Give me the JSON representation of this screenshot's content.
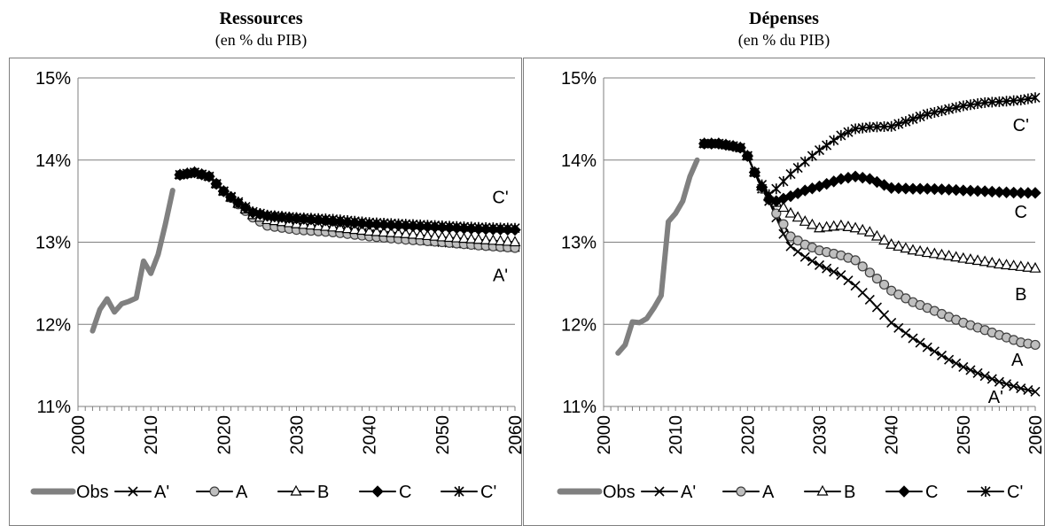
{
  "colors": {
    "obs": "#808080",
    "series": "#000000",
    "marker_fill_A": "#bfbfbf",
    "grid": "#7f7f7f",
    "axis": "#7f7f7f"
  },
  "legend": [
    "Obs",
    "A'",
    "A",
    "B",
    "C",
    "C'"
  ],
  "chart_data": [
    {
      "type": "line",
      "title": "Ressources",
      "subtitle": "(en % du PIB)",
      "xlim": [
        2000,
        2060
      ],
      "ylim": [
        11,
        15
      ],
      "x_ticks": [
        2000,
        2010,
        2020,
        2030,
        2040,
        2050,
        2060
      ],
      "x_tick_labels": [
        "2000",
        "2010",
        "2020",
        "2030",
        "2040",
        "2050",
        "2060"
      ],
      "y_ticks": [
        11,
        12,
        13,
        14,
        15
      ],
      "y_tick_labels": [
        "11%",
        "12%",
        "13%",
        "14%",
        "15%"
      ],
      "grid": "horizontal",
      "legend_position": "bottom",
      "annotations": [
        {
          "text": "C'",
          "x": 2058,
          "y": 13.55
        },
        {
          "text": "A'",
          "x": 2058,
          "y": 12.6
        }
      ],
      "series": [
        {
          "name": "Obs",
          "marker": "none",
          "points": [
            [
              2002,
              11.92
            ],
            [
              2003,
              12.18
            ],
            [
              2004,
              12.31
            ],
            [
              2005,
              12.15
            ],
            [
              2006,
              12.25
            ],
            [
              2007,
              12.28
            ],
            [
              2008,
              12.32
            ],
            [
              2009,
              12.77
            ],
            [
              2010,
              12.62
            ],
            [
              2011,
              12.85
            ],
            [
              2012,
              13.22
            ],
            [
              2013,
              13.63
            ]
          ]
        },
        {
          "name": "A'",
          "marker": "x",
          "points": [
            [
              2014,
              13.82
            ],
            [
              2016,
              13.85
            ],
            [
              2018,
              13.8
            ],
            [
              2020,
              13.62
            ],
            [
              2022,
              13.47
            ],
            [
              2024,
              13.33
            ],
            [
              2026,
              13.27
            ],
            [
              2030,
              13.23
            ],
            [
              2035,
              13.18
            ],
            [
              2040,
              13.1
            ],
            [
              2045,
              13.05
            ],
            [
              2050,
              13.0
            ],
            [
              2055,
              12.97
            ],
            [
              2060,
              12.94
            ]
          ]
        },
        {
          "name": "A",
          "marker": "circle",
          "points": [
            [
              2014,
              13.82
            ],
            [
              2016,
              13.85
            ],
            [
              2018,
              13.8
            ],
            [
              2020,
              13.62
            ],
            [
              2022,
              13.46
            ],
            [
              2024,
              13.3
            ],
            [
              2026,
              13.2
            ],
            [
              2030,
              13.15
            ],
            [
              2035,
              13.12
            ],
            [
              2040,
              13.07
            ],
            [
              2045,
              13.03
            ],
            [
              2050,
              13.0
            ],
            [
              2055,
              12.96
            ],
            [
              2060,
              12.93
            ]
          ]
        },
        {
          "name": "B",
          "marker": "triangle",
          "points": [
            [
              2014,
              13.82
            ],
            [
              2016,
              13.85
            ],
            [
              2018,
              13.8
            ],
            [
              2020,
              13.62
            ],
            [
              2022,
              13.47
            ],
            [
              2024,
              13.33
            ],
            [
              2026,
              13.27
            ],
            [
              2030,
              13.22
            ],
            [
              2035,
              13.18
            ],
            [
              2040,
              13.13
            ],
            [
              2045,
              13.1
            ],
            [
              2050,
              13.06
            ],
            [
              2055,
              13.03
            ],
            [
              2060,
              13.0
            ]
          ]
        },
        {
          "name": "C",
          "marker": "diamond",
          "points": [
            [
              2014,
              13.82
            ],
            [
              2016,
              13.85
            ],
            [
              2018,
              13.8
            ],
            [
              2020,
              13.62
            ],
            [
              2022,
              13.48
            ],
            [
              2024,
              13.36
            ],
            [
              2026,
              13.32
            ],
            [
              2030,
              13.29
            ],
            [
              2035,
              13.26
            ],
            [
              2040,
              13.22
            ],
            [
              2045,
              13.2
            ],
            [
              2050,
              13.18
            ],
            [
              2055,
              13.16
            ],
            [
              2060,
              13.15
            ]
          ]
        },
        {
          "name": "C'",
          "marker": "star",
          "points": [
            [
              2014,
              13.82
            ],
            [
              2016,
              13.85
            ],
            [
              2018,
              13.8
            ],
            [
              2020,
              13.62
            ],
            [
              2022,
              13.49
            ],
            [
              2024,
              13.37
            ],
            [
              2026,
              13.33
            ],
            [
              2030,
              13.3
            ],
            [
              2035,
              13.28
            ],
            [
              2040,
              13.24
            ],
            [
              2045,
              13.22
            ],
            [
              2050,
              13.2
            ],
            [
              2055,
              13.18
            ],
            [
              2060,
              13.17
            ]
          ]
        }
      ]
    },
    {
      "type": "line",
      "title": "Dépenses",
      "subtitle": "(en % du PIB)",
      "xlim": [
        2000,
        2060
      ],
      "ylim": [
        11,
        15
      ],
      "x_ticks": [
        2000,
        2010,
        2020,
        2030,
        2040,
        2050,
        2060
      ],
      "x_tick_labels": [
        "2000",
        "2010",
        "2020",
        "2030",
        "2040",
        "2050",
        "2060"
      ],
      "y_ticks": [
        11,
        12,
        13,
        14,
        15
      ],
      "y_tick_labels": [
        "11%",
        "12%",
        "13%",
        "14%",
        "15%"
      ],
      "grid": "horizontal",
      "legend_position": "bottom",
      "annotations": [
        {
          "text": "C'",
          "x": 2058,
          "y": 14.43
        },
        {
          "text": "C",
          "x": 2058,
          "y": 13.37
        },
        {
          "text": "B",
          "x": 2058,
          "y": 12.37
        },
        {
          "text": "A",
          "x": 2057.5,
          "y": 11.57
        },
        {
          "text": "A'",
          "x": 2054.5,
          "y": 11.12
        }
      ],
      "series": [
        {
          "name": "Obs",
          "marker": "none",
          "points": [
            [
              2002,
              11.65
            ],
            [
              2003,
              11.75
            ],
            [
              2004,
              12.03
            ],
            [
              2005,
              12.02
            ],
            [
              2006,
              12.07
            ],
            [
              2007,
              12.2
            ],
            [
              2008,
              12.35
            ],
            [
              2009,
              13.25
            ],
            [
              2010,
              13.35
            ],
            [
              2011,
              13.5
            ],
            [
              2012,
              13.8
            ],
            [
              2013,
              14.0
            ]
          ]
        },
        {
          "name": "A'",
          "marker": "x",
          "points": [
            [
              2014,
              14.2
            ],
            [
              2016,
              14.2
            ],
            [
              2018,
              14.17
            ],
            [
              2019,
              14.15
            ],
            [
              2020,
              14.05
            ],
            [
              2021,
              13.85
            ],
            [
              2022,
              13.65
            ],
            [
              2023,
              13.5
            ],
            [
              2024,
              13.3
            ],
            [
              2025,
              13.1
            ],
            [
              2026,
              12.95
            ],
            [
              2028,
              12.82
            ],
            [
              2030,
              12.72
            ],
            [
              2033,
              12.6
            ],
            [
              2035,
              12.47
            ],
            [
              2037,
              12.3
            ],
            [
              2040,
              12.02
            ],
            [
              2043,
              11.83
            ],
            [
              2045,
              11.72
            ],
            [
              2048,
              11.57
            ],
            [
              2050,
              11.48
            ],
            [
              2053,
              11.37
            ],
            [
              2055,
              11.3
            ],
            [
              2058,
              11.22
            ],
            [
              2060,
              11.18
            ]
          ]
        },
        {
          "name": "A",
          "marker": "circle",
          "points": [
            [
              2014,
              14.2
            ],
            [
              2016,
              14.2
            ],
            [
              2018,
              14.17
            ],
            [
              2019,
              14.15
            ],
            [
              2020,
              14.05
            ],
            [
              2021,
              13.85
            ],
            [
              2022,
              13.65
            ],
            [
              2023,
              13.52
            ],
            [
              2024,
              13.35
            ],
            [
              2025,
              13.22
            ],
            [
              2026,
              13.07
            ],
            [
              2028,
              12.97
            ],
            [
              2030,
              12.9
            ],
            [
              2033,
              12.84
            ],
            [
              2035,
              12.78
            ],
            [
              2037,
              12.63
            ],
            [
              2040,
              12.41
            ],
            [
              2043,
              12.27
            ],
            [
              2045,
              12.2
            ],
            [
              2048,
              12.09
            ],
            [
              2050,
              12.02
            ],
            [
              2053,
              11.93
            ],
            [
              2055,
              11.87
            ],
            [
              2058,
              11.78
            ],
            [
              2060,
              11.75
            ]
          ]
        },
        {
          "name": "B",
          "marker": "triangle",
          "points": [
            [
              2014,
              14.2
            ],
            [
              2016,
              14.2
            ],
            [
              2018,
              14.17
            ],
            [
              2019,
              14.15
            ],
            [
              2020,
              14.05
            ],
            [
              2021,
              13.85
            ],
            [
              2022,
              13.68
            ],
            [
              2023,
              13.55
            ],
            [
              2024,
              13.48
            ],
            [
              2025,
              13.42
            ],
            [
              2026,
              13.35
            ],
            [
              2028,
              13.25
            ],
            [
              2030,
              13.17
            ],
            [
              2033,
              13.2
            ],
            [
              2035,
              13.17
            ],
            [
              2037,
              13.12
            ],
            [
              2040,
              12.97
            ],
            [
              2043,
              12.9
            ],
            [
              2045,
              12.87
            ],
            [
              2048,
              12.83
            ],
            [
              2050,
              12.8
            ],
            [
              2053,
              12.76
            ],
            [
              2055,
              12.73
            ],
            [
              2058,
              12.7
            ],
            [
              2060,
              12.68
            ]
          ]
        },
        {
          "name": "C",
          "marker": "diamond",
          "points": [
            [
              2014,
              14.2
            ],
            [
              2016,
              14.2
            ],
            [
              2018,
              14.17
            ],
            [
              2019,
              14.15
            ],
            [
              2020,
              14.05
            ],
            [
              2021,
              13.85
            ],
            [
              2022,
              13.67
            ],
            [
              2023,
              13.52
            ],
            [
              2024,
              13.5
            ],
            [
              2026,
              13.56
            ],
            [
              2028,
              13.63
            ],
            [
              2030,
              13.68
            ],
            [
              2033,
              13.77
            ],
            [
              2035,
              13.8
            ],
            [
              2037,
              13.77
            ],
            [
              2040,
              13.66
            ],
            [
              2043,
              13.65
            ],
            [
              2045,
              13.65
            ],
            [
              2048,
              13.64
            ],
            [
              2050,
              13.63
            ],
            [
              2053,
              13.62
            ],
            [
              2055,
              13.61
            ],
            [
              2058,
              13.6
            ],
            [
              2060,
              13.6
            ]
          ]
        },
        {
          "name": "C'",
          "marker": "star",
          "points": [
            [
              2014,
              14.2
            ],
            [
              2016,
              14.2
            ],
            [
              2018,
              14.17
            ],
            [
              2019,
              14.15
            ],
            [
              2020,
              14.05
            ],
            [
              2021,
              13.85
            ],
            [
              2022,
              13.7
            ],
            [
              2023,
              13.58
            ],
            [
              2024,
              13.65
            ],
            [
              2026,
              13.83
            ],
            [
              2028,
              13.98
            ],
            [
              2030,
              14.12
            ],
            [
              2033,
              14.3
            ],
            [
              2035,
              14.38
            ],
            [
              2037,
              14.4
            ],
            [
              2040,
              14.41
            ],
            [
              2043,
              14.5
            ],
            [
              2045,
              14.56
            ],
            [
              2048,
              14.62
            ],
            [
              2050,
              14.66
            ],
            [
              2053,
              14.7
            ],
            [
              2055,
              14.71
            ],
            [
              2058,
              14.73
            ],
            [
              2060,
              14.76
            ]
          ]
        }
      ]
    }
  ]
}
